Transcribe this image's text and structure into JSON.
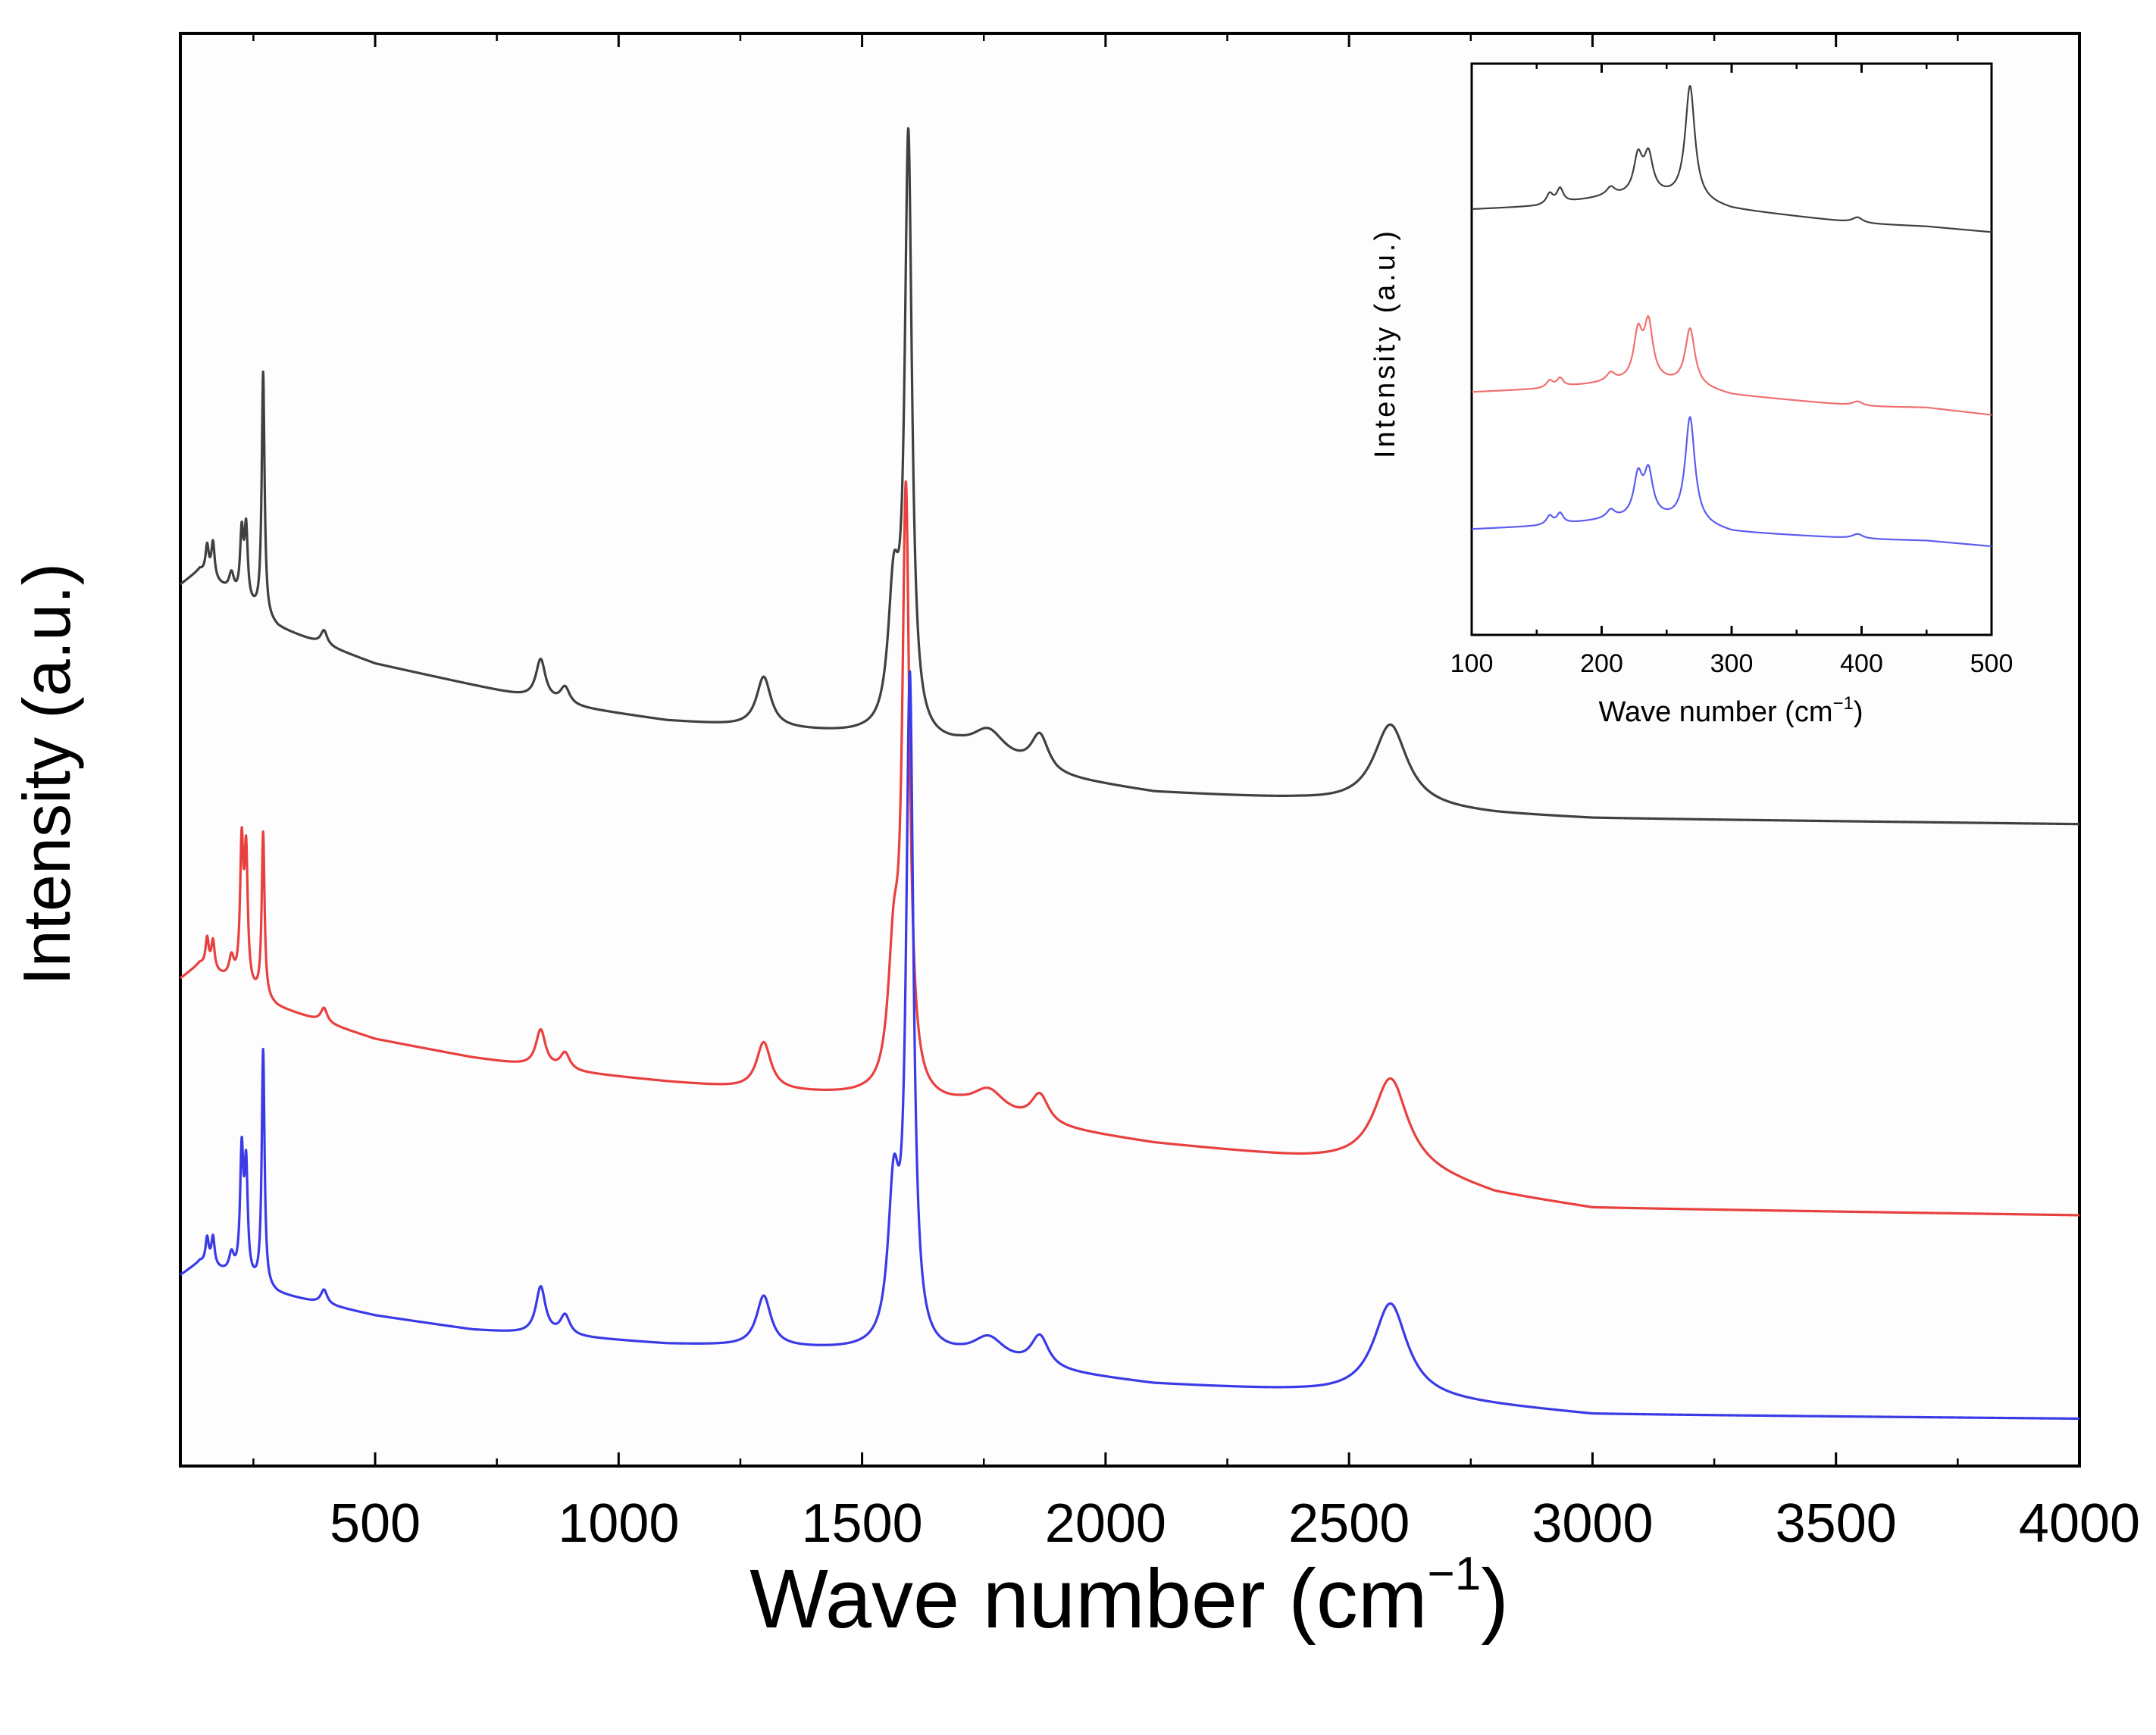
{
  "chart_data": [
    {
      "type": "line",
      "panel": "main",
      "title": "",
      "xlabel": "Wave number (cm",
      "xlabel_sup": "-1",
      "xlabel_end": ")",
      "ylabel": "Intensity (a.u.)",
      "xlim": [
        100,
        4000
      ],
      "ylim": [
        0,
        1
      ],
      "xticks": [
        500,
        1000,
        1500,
        2000,
        2500,
        3000,
        3500,
        4000
      ],
      "xtick_labels": [
        "500",
        "1000",
        "1500",
        "2000",
        "2500",
        "3000",
        "3500",
        "4000"
      ],
      "yticks_shown": false,
      "legend": "none",
      "series": [
        {
          "name": "black spectrum",
          "color": "#404040",
          "baseline": [
            [
              100,
              0.615
            ],
            [
              140,
              0.625
            ],
            [
              300,
              0.585
            ],
            [
              500,
              0.56
            ],
            [
              700,
              0.545
            ],
            [
              900,
              0.53
            ],
            [
              1100,
              0.52
            ],
            [
              1300,
              0.515
            ],
            [
              1500,
              0.51
            ],
            [
              1700,
              0.5
            ],
            [
              1800,
              0.49
            ],
            [
              1900,
              0.48
            ],
            [
              2100,
              0.47
            ],
            [
              2400,
              0.465
            ],
            [
              2600,
              0.46
            ],
            [
              2800,
              0.455
            ],
            [
              3000,
              0.452
            ],
            [
              4000,
              0.448
            ]
          ],
          "peaks": [
            {
              "x": 155,
              "height": 0.02,
              "width": 4
            },
            {
              "x": 167,
              "height": 0.025,
              "width": 4
            },
            {
              "x": 205,
              "height": 0.013,
              "width": 6
            },
            {
              "x": 226,
              "height": 0.045,
              "width": 4
            },
            {
              "x": 235,
              "height": 0.05,
              "width": 4
            },
            {
              "x": 270,
              "height": 0.17,
              "width": 3.5
            },
            {
              "x": 395,
              "height": 0.01,
              "width": 8
            },
            {
              "x": 840,
              "height": 0.028,
              "width": 12
            },
            {
              "x": 890,
              "height": 0.012,
              "width": 12
            },
            {
              "x": 1298,
              "height": 0.035,
              "width": 18
            },
            {
              "x": 1565,
              "height": 0.095,
              "width": 14
            },
            {
              "x": 1595,
              "height": 0.41,
              "width": 9
            },
            {
              "x": 1760,
              "height": 0.018,
              "width": 40
            },
            {
              "x": 1865,
              "height": 0.025,
              "width": 22
            },
            {
              "x": 2585,
              "height": 0.057,
              "width": 42
            }
          ]
        },
        {
          "name": "red spectrum",
          "color": "#e8403f",
          "baseline": [
            [
              100,
              0.34
            ],
            [
              140,
              0.35
            ],
            [
              300,
              0.32
            ],
            [
              500,
              0.298
            ],
            [
              700,
              0.285
            ],
            [
              900,
              0.275
            ],
            [
              1100,
              0.268
            ],
            [
              1300,
              0.262
            ],
            [
              1500,
              0.258
            ],
            [
              1700,
              0.25
            ],
            [
              1800,
              0.242
            ],
            [
              1900,
              0.235
            ],
            [
              2100,
              0.225
            ],
            [
              2400,
              0.215
            ],
            [
              2600,
              0.21
            ],
            [
              2800,
              0.19
            ],
            [
              3000,
              0.18
            ],
            [
              4000,
              0.175
            ]
          ],
          "peaks": [
            {
              "x": 155,
              "height": 0.02,
              "width": 4
            },
            {
              "x": 167,
              "height": 0.02,
              "width": 4
            },
            {
              "x": 205,
              "height": 0.015,
              "width": 6
            },
            {
              "x": 226,
              "height": 0.095,
              "width": 4
            },
            {
              "x": 235,
              "height": 0.09,
              "width": 4
            },
            {
              "x": 270,
              "height": 0.115,
              "width": 3.5
            },
            {
              "x": 395,
              "height": 0.01,
              "width": 8
            },
            {
              "x": 840,
              "height": 0.026,
              "width": 12
            },
            {
              "x": 890,
              "height": 0.012,
              "width": 12
            },
            {
              "x": 1298,
              "height": 0.033,
              "width": 18
            },
            {
              "x": 1565,
              "height": 0.09,
              "width": 14
            },
            {
              "x": 1590,
              "height": 0.41,
              "width": 9
            },
            {
              "x": 1760,
              "height": 0.016,
              "width": 40
            },
            {
              "x": 1865,
              "height": 0.02,
              "width": 22
            },
            {
              "x": 2585,
              "height": 0.06,
              "width": 42
            }
          ]
        },
        {
          "name": "blue spectrum",
          "color": "#3a3ae6",
          "baseline": [
            [
              100,
              0.133
            ],
            [
              140,
              0.142
            ],
            [
              300,
              0.12
            ],
            [
              500,
              0.105
            ],
            [
              700,
              0.095
            ],
            [
              900,
              0.09
            ],
            [
              1100,
              0.085
            ],
            [
              1300,
              0.083
            ],
            [
              1500,
              0.08
            ],
            [
              1700,
              0.075
            ],
            [
              1800,
              0.07
            ],
            [
              1900,
              0.065
            ],
            [
              2100,
              0.057
            ],
            [
              2400,
              0.052
            ],
            [
              2600,
              0.048
            ],
            [
              2800,
              0.042
            ],
            [
              3000,
              0.036
            ],
            [
              4000,
              0.033
            ]
          ],
          "peaks": [
            {
              "x": 155,
              "height": 0.018,
              "width": 4
            },
            {
              "x": 167,
              "height": 0.02,
              "width": 4
            },
            {
              "x": 205,
              "height": 0.013,
              "width": 6
            },
            {
              "x": 226,
              "height": 0.085,
              "width": 4
            },
            {
              "x": 235,
              "height": 0.075,
              "width": 4
            },
            {
              "x": 270,
              "height": 0.165,
              "width": 3.5
            },
            {
              "x": 395,
              "height": 0.01,
              "width": 8
            },
            {
              "x": 840,
              "height": 0.033,
              "width": 12
            },
            {
              "x": 890,
              "height": 0.014,
              "width": 12
            },
            {
              "x": 1298,
              "height": 0.035,
              "width": 18
            },
            {
              "x": 1565,
              "height": 0.105,
              "width": 14
            },
            {
              "x": 1598,
              "height": 0.46,
              "width": 9
            },
            {
              "x": 1760,
              "height": 0.016,
              "width": 40
            },
            {
              "x": 1865,
              "height": 0.022,
              "width": 22
            },
            {
              "x": 2585,
              "height": 0.065,
              "width": 42
            }
          ]
        }
      ]
    },
    {
      "type": "line",
      "panel": "inset",
      "title": "",
      "xlabel": "Wave number (cm",
      "xlabel_sup": "-1",
      "xlabel_end": ")",
      "ylabel": "Intensity (a.u.)",
      "xlim": [
        100,
        500
      ],
      "ylim": [
        0,
        1
      ],
      "xticks": [
        100,
        200,
        300,
        400,
        500
      ],
      "xtick_labels": [
        "100",
        "200",
        "300",
        "400",
        "500"
      ],
      "yticks_shown": false,
      "legend": "none",
      "series": [
        {
          "name": "black spectrum (inset)",
          "color": "#404040",
          "baseline": [
            [
              100,
              0.745
            ],
            [
              150,
              0.75
            ],
            [
              200,
              0.765
            ],
            [
              240,
              0.77
            ],
            [
              280,
              0.755
            ],
            [
              300,
              0.745
            ],
            [
              400,
              0.72
            ],
            [
              450,
              0.715
            ],
            [
              500,
              0.705
            ]
          ],
          "peaks": [
            {
              "x": 160,
              "height": 0.018,
              "width": 3
            },
            {
              "x": 168,
              "height": 0.025,
              "width": 3
            },
            {
              "x": 207,
              "height": 0.015,
              "width": 4
            },
            {
              "x": 228,
              "height": 0.065,
              "width": 4
            },
            {
              "x": 236,
              "height": 0.065,
              "width": 4
            },
            {
              "x": 268,
              "height": 0.2,
              "width": 4.5
            },
            {
              "x": 397,
              "height": 0.01,
              "width": 5
            }
          ]
        },
        {
          "name": "red spectrum (inset)",
          "color": "#f07070",
          "baseline": [
            [
              100,
              0.425
            ],
            [
              150,
              0.43
            ],
            [
              200,
              0.44
            ],
            [
              240,
              0.445
            ],
            [
              280,
              0.43
            ],
            [
              300,
              0.42
            ],
            [
              400,
              0.4
            ],
            [
              450,
              0.398
            ],
            [
              500,
              0.385
            ]
          ],
          "peaks": [
            {
              "x": 160,
              "height": 0.012,
              "width": 3
            },
            {
              "x": 168,
              "height": 0.015,
              "width": 3
            },
            {
              "x": 207,
              "height": 0.015,
              "width": 4
            },
            {
              "x": 228,
              "height": 0.08,
              "width": 4
            },
            {
              "x": 236,
              "height": 0.095,
              "width": 4
            },
            {
              "x": 268,
              "height": 0.1,
              "width": 4.5
            },
            {
              "x": 397,
              "height": 0.008,
              "width": 5
            }
          ]
        },
        {
          "name": "blue spectrum (inset)",
          "color": "#5c5cf0",
          "baseline": [
            [
              100,
              0.185
            ],
            [
              150,
              0.19
            ],
            [
              200,
              0.2
            ],
            [
              240,
              0.205
            ],
            [
              280,
              0.19
            ],
            [
              300,
              0.18
            ],
            [
              400,
              0.168
            ],
            [
              450,
              0.165
            ],
            [
              500,
              0.155
            ]
          ],
          "peaks": [
            {
              "x": 160,
              "height": 0.015,
              "width": 3
            },
            {
              "x": 168,
              "height": 0.018,
              "width": 3
            },
            {
              "x": 207,
              "height": 0.015,
              "width": 4
            },
            {
              "x": 228,
              "height": 0.07,
              "width": 4
            },
            {
              "x": 236,
              "height": 0.075,
              "width": 4
            },
            {
              "x": 268,
              "height": 0.185,
              "width": 4.5
            },
            {
              "x": 397,
              "height": 0.008,
              "width": 5
            }
          ]
        }
      ]
    }
  ]
}
